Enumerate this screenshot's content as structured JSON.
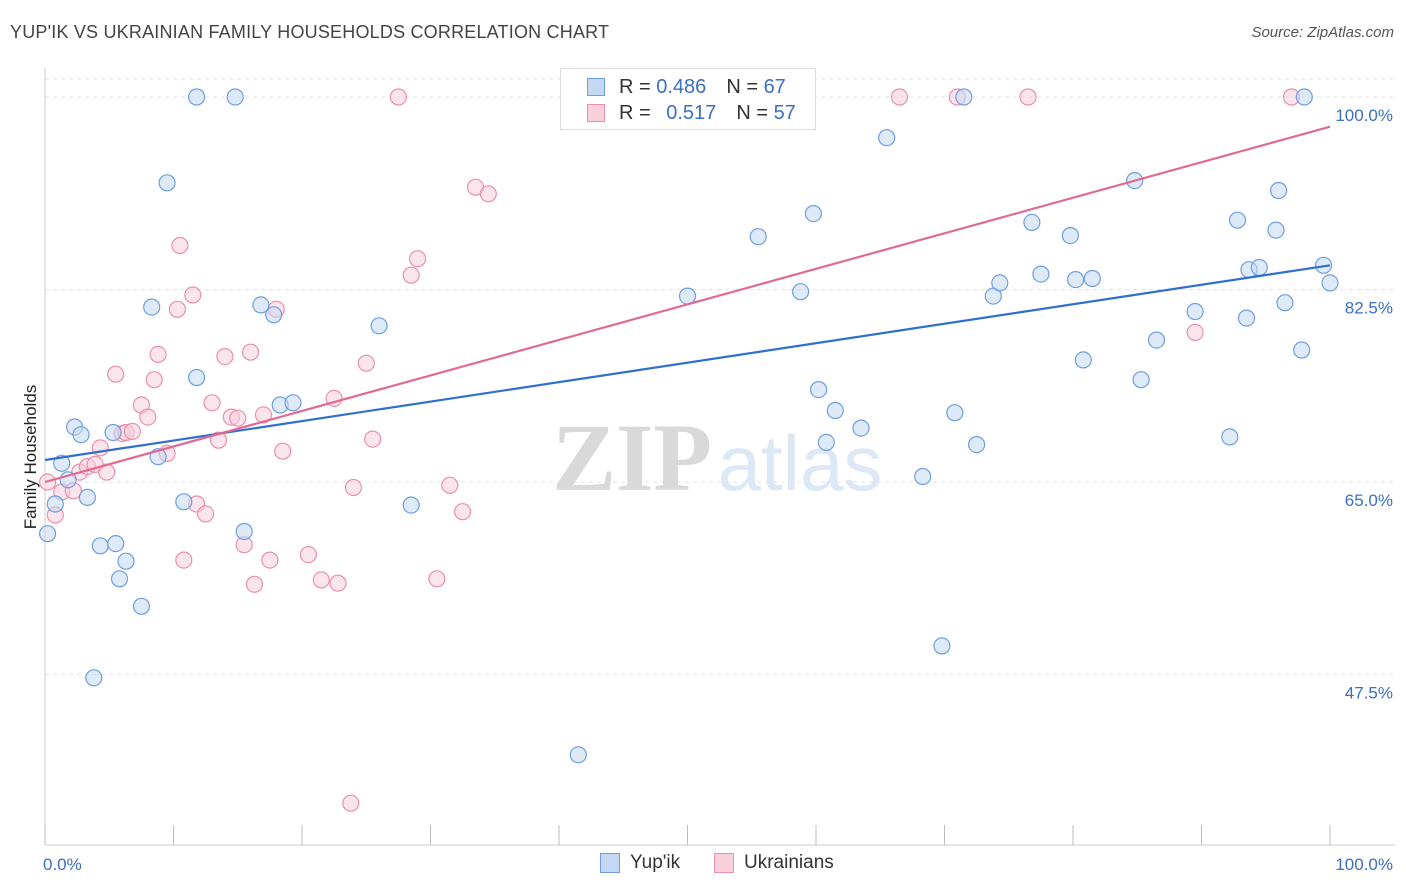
{
  "title": "YUP'IK VS UKRAINIAN FAMILY HOUSEHOLDS CORRELATION CHART",
  "source": "Source: ZipAtlas.com",
  "watermark": {
    "zip": "ZIP",
    "atlas": "atlas"
  },
  "colors": {
    "blue": "#6f9ee0",
    "blue_fill": "#c5d8f3",
    "blue_line": "#2f6fcf",
    "pink": "#eb8fac",
    "pink_fill": "#f8d0dc",
    "pink_line": "#e06a93",
    "tick_text": "#3a6fc4"
  },
  "legend": {
    "rows": [
      {
        "r_label": "R =",
        "r_value": "0.486",
        "n_label": "N =",
        "n_value": "67"
      },
      {
        "r_label": "R =",
        "r_value": "0.517",
        "n_label": "N =",
        "n_value": "57"
      }
    ]
  },
  "bottom_legend": {
    "series1": "Yup'ik",
    "series2": "Ukrainians"
  },
  "chart_data": {
    "type": "scatter",
    "ylabel": "Family Households",
    "xlabel": "",
    "xlim": [
      0,
      100
    ],
    "ylim": [
      32.0,
      102.0
    ],
    "x_tick_labels": [
      "0.0%",
      "100.0%"
    ],
    "y_ticks": [
      47.5,
      65.0,
      82.5,
      100.0
    ],
    "y_tick_labels": [
      "47.5%",
      "65.0%",
      "82.5%",
      "100.0%"
    ],
    "grid": true,
    "series": [
      {
        "name": "Yup'ik",
        "trend": [
          [
            0,
            67.0
          ],
          [
            100,
            84.7
          ]
        ],
        "points": [
          [
            0.2,
            60.3
          ],
          [
            0.8,
            63.0
          ],
          [
            1.3,
            66.7
          ],
          [
            1.8,
            65.2
          ],
          [
            2.3,
            70.0
          ],
          [
            2.8,
            69.3
          ],
          [
            3.3,
            63.6
          ],
          [
            3.8,
            47.2
          ],
          [
            4.3,
            59.2
          ],
          [
            5.3,
            69.5
          ],
          [
            5.5,
            59.4
          ],
          [
            5.8,
            56.2
          ],
          [
            6.3,
            57.8
          ],
          [
            7.5,
            53.7
          ],
          [
            8.3,
            80.9
          ],
          [
            8.8,
            67.3
          ],
          [
            9.5,
            92.2
          ],
          [
            10.8,
            63.2
          ],
          [
            11.8,
            74.5
          ],
          [
            11.8,
            100.0
          ],
          [
            14.8,
            100.0
          ],
          [
            15.5,
            60.5
          ],
          [
            16.8,
            81.1
          ],
          [
            17.8,
            80.2
          ],
          [
            18.3,
            72.0
          ],
          [
            19.3,
            72.2
          ],
          [
            26.0,
            79.2
          ],
          [
            28.5,
            62.9
          ],
          [
            41.5,
            40.2
          ],
          [
            50.0,
            81.9
          ],
          [
            55.5,
            87.3
          ],
          [
            58.8,
            82.3
          ],
          [
            59.8,
            89.4
          ],
          [
            60.2,
            73.4
          ],
          [
            60.8,
            68.6
          ],
          [
            61.5,
            71.5
          ],
          [
            63.5,
            69.9
          ],
          [
            65.5,
            96.3
          ],
          [
            68.3,
            65.5
          ],
          [
            69.8,
            50.1
          ],
          [
            70.8,
            71.3
          ],
          [
            71.5,
            100.0
          ],
          [
            72.5,
            68.4
          ],
          [
            73.8,
            81.9
          ],
          [
            74.3,
            83.1
          ],
          [
            76.8,
            88.6
          ],
          [
            77.5,
            83.9
          ],
          [
            79.8,
            87.4
          ],
          [
            80.2,
            83.4
          ],
          [
            80.8,
            76.1
          ],
          [
            81.5,
            83.5
          ],
          [
            84.8,
            92.4
          ],
          [
            85.3,
            74.3
          ],
          [
            86.5,
            77.9
          ],
          [
            89.5,
            80.5
          ],
          [
            92.2,
            69.1
          ],
          [
            92.8,
            88.8
          ],
          [
            93.5,
            79.9
          ],
          [
            93.7,
            84.3
          ],
          [
            94.5,
            84.5
          ],
          [
            95.8,
            87.9
          ],
          [
            96.0,
            91.5
          ],
          [
            96.5,
            81.3
          ],
          [
            97.8,
            77.0
          ],
          [
            98.0,
            100.0
          ],
          [
            99.5,
            84.7
          ],
          [
            100.0,
            83.1
          ]
        ]
      },
      {
        "name": "Ukrainians",
        "trend": [
          [
            0,
            65.0
          ],
          [
            100,
            97.3
          ]
        ],
        "points": [
          [
            0.2,
            65.0
          ],
          [
            0.8,
            62.0
          ],
          [
            1.3,
            64.1
          ],
          [
            2.2,
            64.2
          ],
          [
            2.7,
            65.9
          ],
          [
            3.3,
            66.4
          ],
          [
            3.9,
            66.6
          ],
          [
            4.3,
            68.1
          ],
          [
            4.8,
            65.9
          ],
          [
            5.5,
            74.8
          ],
          [
            6.0,
            69.4
          ],
          [
            6.3,
            69.5
          ],
          [
            6.8,
            69.6
          ],
          [
            7.5,
            72.0
          ],
          [
            8.0,
            70.9
          ],
          [
            8.5,
            74.3
          ],
          [
            8.8,
            76.6
          ],
          [
            9.5,
            67.6
          ],
          [
            10.3,
            80.7
          ],
          [
            10.5,
            86.5
          ],
          [
            10.8,
            57.9
          ],
          [
            11.5,
            82.0
          ],
          [
            11.8,
            63.0
          ],
          [
            12.5,
            62.1
          ],
          [
            13.0,
            72.2
          ],
          [
            13.5,
            68.8
          ],
          [
            14.0,
            76.4
          ],
          [
            14.5,
            70.9
          ],
          [
            15.0,
            70.8
          ],
          [
            15.5,
            59.3
          ],
          [
            16.0,
            76.8
          ],
          [
            16.3,
            55.7
          ],
          [
            17.0,
            71.1
          ],
          [
            17.5,
            57.9
          ],
          [
            18.0,
            80.7
          ],
          [
            18.5,
            67.8
          ],
          [
            20.5,
            58.4
          ],
          [
            21.5,
            56.1
          ],
          [
            22.5,
            72.6
          ],
          [
            22.8,
            55.8
          ],
          [
            23.8,
            35.8
          ],
          [
            24.0,
            64.5
          ],
          [
            25.0,
            75.8
          ],
          [
            25.5,
            68.9
          ],
          [
            27.5,
            100.0
          ],
          [
            28.5,
            83.8
          ],
          [
            29.0,
            85.3
          ],
          [
            30.5,
            56.2
          ],
          [
            31.5,
            64.7
          ],
          [
            32.5,
            62.3
          ],
          [
            33.5,
            91.8
          ],
          [
            34.5,
            91.2
          ],
          [
            66.5,
            100.0
          ],
          [
            71.0,
            100.0
          ],
          [
            76.5,
            100.0
          ],
          [
            89.5,
            78.6
          ],
          [
            97.0,
            100.0
          ]
        ]
      }
    ]
  }
}
